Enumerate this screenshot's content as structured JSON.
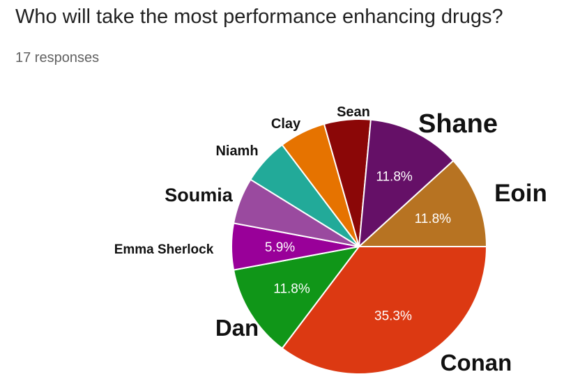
{
  "header": {
    "question": "Who will take the most performance enhancing drugs?",
    "responses": "17 responses"
  },
  "chart_data": {
    "type": "pie",
    "total_responses": 17,
    "slices": [
      {
        "name": "Conan",
        "value": 6,
        "percent": "35.3%",
        "color": "#dc3912"
      },
      {
        "name": "Dan",
        "value": 2,
        "percent": "11.8%",
        "color": "#109618"
      },
      {
        "name": "Emma Sherlock",
        "value": 1,
        "percent": "5.9%",
        "color": "#990099"
      },
      {
        "name": "Soumia",
        "value": 1,
        "percent": "",
        "color": "#9a4a9f"
      },
      {
        "name": "Niamh",
        "value": 1,
        "percent": "",
        "color": "#22aa99"
      },
      {
        "name": "Clay",
        "value": 1,
        "percent": "",
        "color": "#e67300"
      },
      {
        "name": "Sean",
        "value": 1,
        "percent": "",
        "color": "#8b0707"
      },
      {
        "name": "Shane",
        "value": 2,
        "percent": "11.8%",
        "color": "#651067"
      },
      {
        "name": "Eoin",
        "value": 2,
        "percent": "11.8%",
        "color": "#b77322"
      }
    ]
  }
}
